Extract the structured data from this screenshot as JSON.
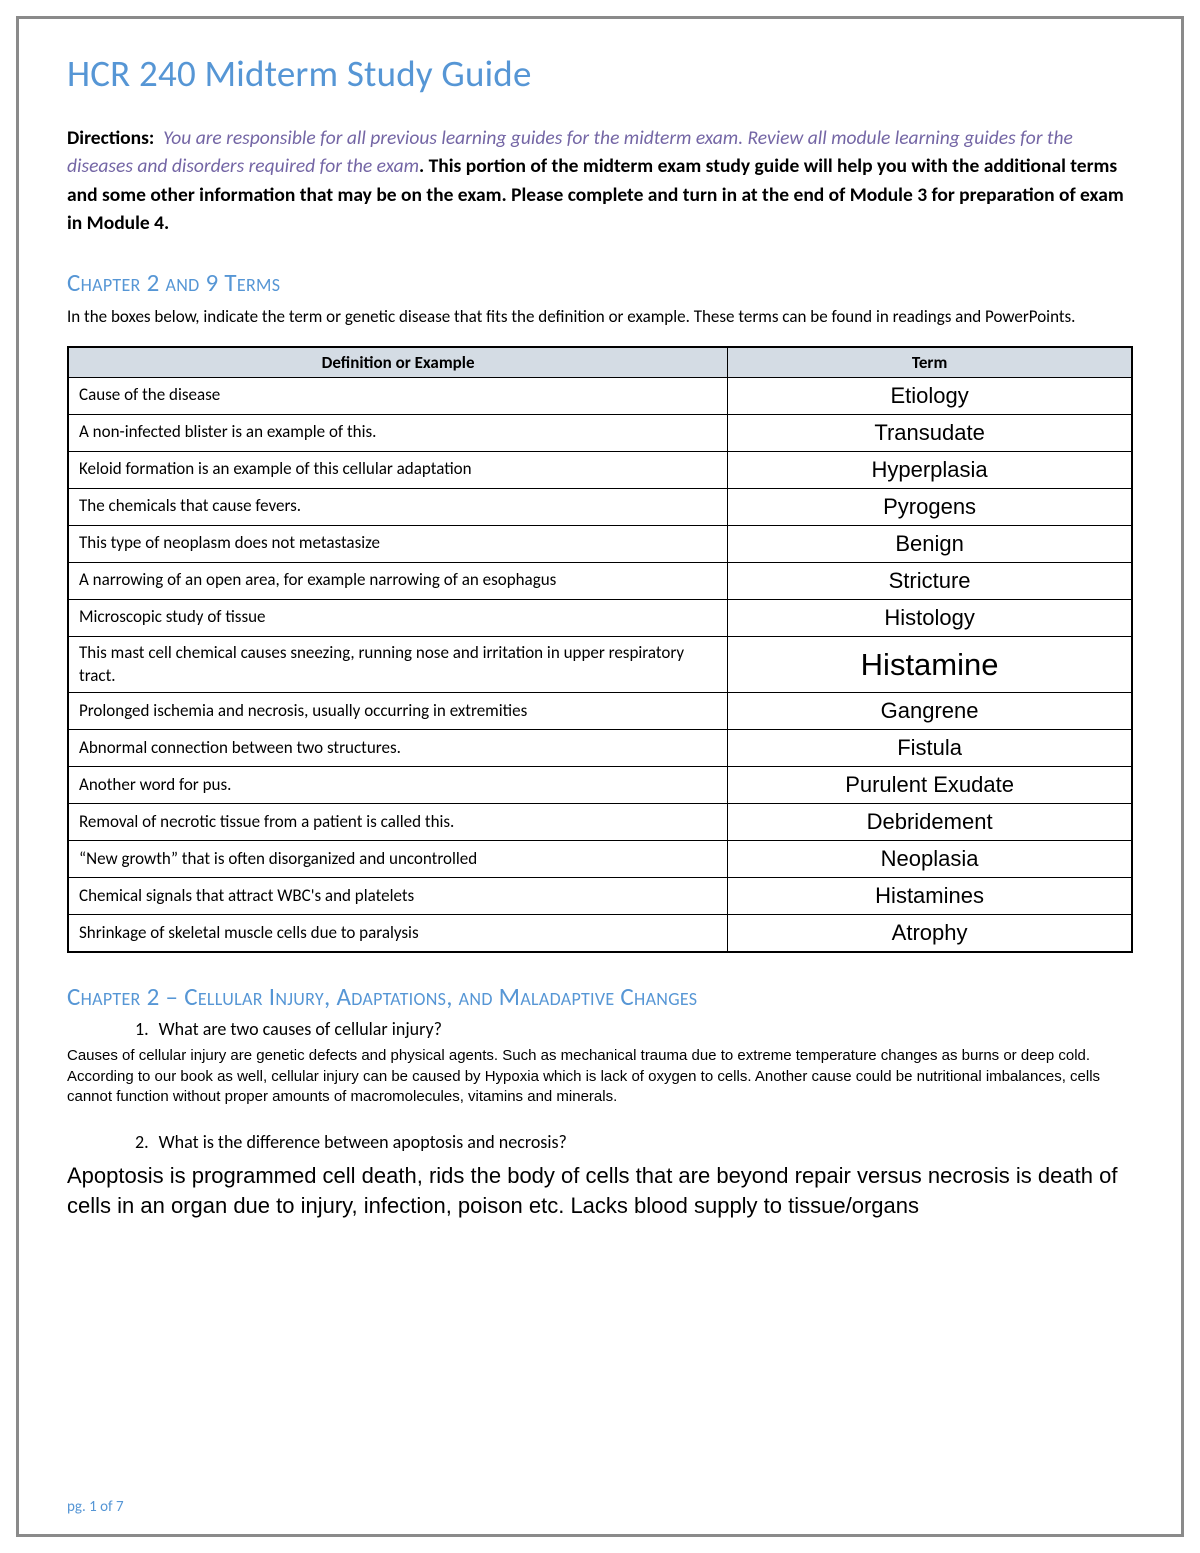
{
  "title": "HCR 240 Midterm Study Guide",
  "directions": {
    "label": "Directions:",
    "italic_text": "You are responsible for all previous learning guides for the midterm exam. Review all module learning guides for the diseases and disorders required for the exam",
    "bold_text": ". This portion of the midterm exam study guide will help you with the additional terms and some other information that may be on the exam. Please complete and turn in at the end of Module 3 for preparation of exam in Module 4."
  },
  "section1": {
    "heading": "Chapter 2 and 9 Terms",
    "intro": "In the boxes below, indicate the term or genetic disease that fits the definition or example. These terms can be found in readings and PowerPoints.",
    "table": {
      "col1": "Definition or Example",
      "col2": "Term",
      "rows": [
        {
          "def": "Cause of the disease",
          "term": "Etiology"
        },
        {
          "def": "A non-infected blister is an example of this.",
          "term": "Transudate"
        },
        {
          "def": "Keloid formation is an example of this cellular adaptation",
          "term": "Hyperplasia"
        },
        {
          "def": "The chemicals that cause fevers.",
          "term": "Pyrogens"
        },
        {
          "def": "This type of neoplasm does not metastasize",
          "term": "Benign"
        },
        {
          "def": "A narrowing of an open area, for example narrowing of an esophagus",
          "term": "Stricture"
        },
        {
          "def": "Microscopic study of tissue",
          "term": "Histology"
        },
        {
          "def": "This mast cell chemical causes sneezing, running nose and irritation in upper respiratory tract.",
          "term": "Histamine",
          "big": true
        },
        {
          "def": "Prolonged ischemia and necrosis, usually occurring in extremities",
          "term": "Gangrene"
        },
        {
          "def": "Abnormal connection between two structures.",
          "term": "Fistula"
        },
        {
          "def": "Another word for pus.",
          "term": "Purulent Exudate"
        },
        {
          "def": "Removal of necrotic tissue from a patient is called this.",
          "term": "Debridement"
        },
        {
          "def": "“New growth” that is often disorganized and uncontrolled",
          "term": "Neoplasia"
        },
        {
          "def": "Chemical signals that attract WBC's and platelets",
          "term": "Histamines"
        },
        {
          "def": "Shrinkage of skeletal muscle cells due to paralysis",
          "term": "Atrophy"
        }
      ]
    }
  },
  "section2": {
    "heading": "Chapter 2 – Cellular Injury, Adaptations, and Maladaptive Changes",
    "q1_num": "1.",
    "q1": "What are two causes of cellular injury?",
    "a1": "Causes of cellular injury are genetic defects and physical agents. Such as mechanical trauma due to extreme temperature changes as burns or deep cold. According to our book as well, cellular injury can be caused by Hypoxia which is lack of oxygen to cells. Another cause could be nutritional imbalances, cells cannot function without proper amounts of macromolecules, vitamins and minerals.",
    "q2_num": "2.",
    "q2": "What is the difference between apoptosis and necrosis?",
    "a2": "Apoptosis is programmed cell death, rids the body of cells that are beyond repair versus necrosis is death of cells in an organ due to injury, infection, poison etc. Lacks blood supply to tissue/organs"
  },
  "footer": "pg. 1 of 7",
  "colors": {
    "heading_blue": "#5696d5",
    "italic_purple": "#7466a5",
    "table_header_bg": "#d4dce4",
    "border_gray": "#8a8a8a",
    "text_black": "#000000"
  }
}
